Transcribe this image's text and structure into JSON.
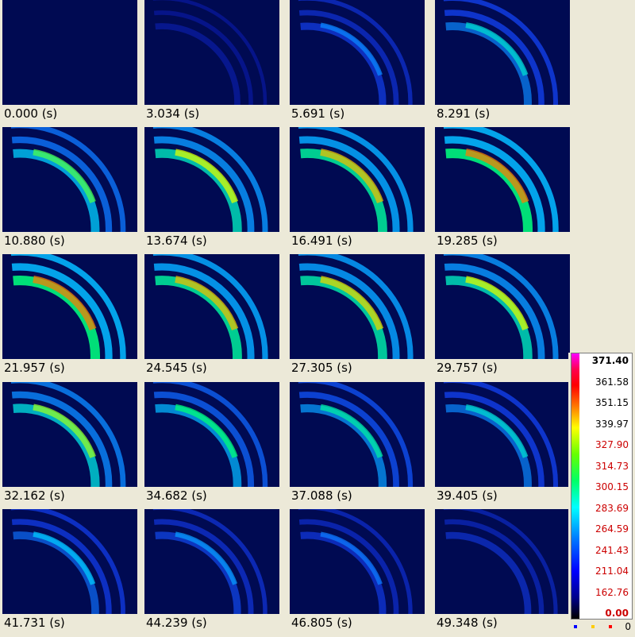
{
  "frames": [
    {
      "time": "0.000 (s)",
      "level": 0.0
    },
    {
      "time": "3.034 (s)",
      "level": 0.12
    },
    {
      "time": "5.691 (s)",
      "level": 0.35
    },
    {
      "time": "8.291 (s)",
      "level": 0.5
    },
    {
      "time": "10.880 (s)",
      "level": 0.65
    },
    {
      "time": "13.674 (s)",
      "level": 0.75
    },
    {
      "time": "16.491 (s)",
      "level": 0.8
    },
    {
      "time": "19.285 (s)",
      "level": 0.85
    },
    {
      "time": "21.957 (s)",
      "level": 0.85
    },
    {
      "time": "24.545 (s)",
      "level": 0.8
    },
    {
      "time": "27.305 (s)",
      "level": 0.78
    },
    {
      "time": "29.757 (s)",
      "level": 0.75
    },
    {
      "time": "32.162 (s)",
      "level": 0.7
    },
    {
      "time": "34.682 (s)",
      "level": 0.6
    },
    {
      "time": "37.088 (s)",
      "level": 0.55
    },
    {
      "time": "39.405 (s)",
      "level": 0.5
    },
    {
      "time": "41.731 (s)",
      "level": 0.45
    },
    {
      "time": "44.239 (s)",
      "level": 0.38
    },
    {
      "time": "46.805 (s)",
      "level": 0.33
    },
    {
      "time": "49.348 (s)",
      "level": 0.28
    }
  ],
  "colorbar": {
    "labels": [
      {
        "text": "371.40",
        "color": "#000000",
        "bold": true
      },
      {
        "text": "361.58",
        "color": "#000000",
        "bold": false
      },
      {
        "text": "351.15",
        "color": "#000000",
        "bold": false
      },
      {
        "text": "339.97",
        "color": "#000000",
        "bold": false
      },
      {
        "text": "327.90",
        "color": "#cc0000",
        "bold": false
      },
      {
        "text": "314.73",
        "color": "#cc0000",
        "bold": false
      },
      {
        "text": "300.15",
        "color": "#cc0000",
        "bold": false
      },
      {
        "text": "283.69",
        "color": "#cc0000",
        "bold": false
      },
      {
        "text": "264.59",
        "color": "#cc0000",
        "bold": false
      },
      {
        "text": "241.43",
        "color": "#cc0000",
        "bold": false
      },
      {
        "text": "211.04",
        "color": "#cc0000",
        "bold": false
      },
      {
        "text": "162.76",
        "color": "#cc0000",
        "bold": false
      },
      {
        "text": "0.00",
        "color": "#cc0000",
        "bold": true
      }
    ],
    "legend_colors": [
      "#0000ff",
      "#ffcc00",
      "#ff0000"
    ],
    "legend_count": "0"
  }
}
